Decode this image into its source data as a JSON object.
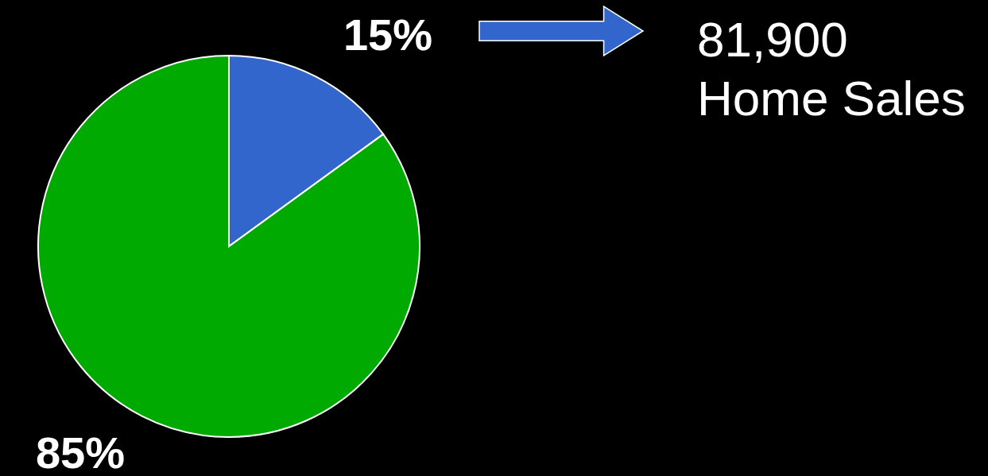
{
  "chart_data": {
    "type": "pie",
    "categories": [
      null,
      null
    ],
    "values": [
      15,
      85
    ],
    "colors": [
      "#3366cc",
      "#00aa00"
    ],
    "value_labels": [
      "15%",
      "85%"
    ],
    "annotations": [
      "81,900\nHome Sales"
    ]
  }
}
